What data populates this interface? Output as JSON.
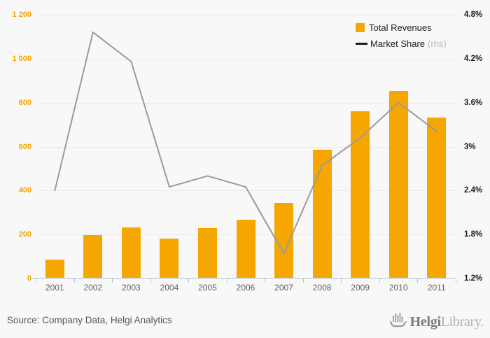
{
  "chart_data": {
    "type": "bar+line",
    "title": "",
    "categories": [
      "2001",
      "2002",
      "2003",
      "2004",
      "2005",
      "2006",
      "2007",
      "2008",
      "2009",
      "2010",
      "2011"
    ],
    "series": [
      {
        "name": "Total Revenues",
        "type": "bar",
        "axis": "left",
        "color": "#f5a600",
        "values": [
          87,
          198,
          233,
          182,
          229,
          268,
          345,
          585,
          762,
          854,
          731
        ]
      },
      {
        "name": "Market Share",
        "type": "line",
        "axis": "right",
        "color": "#9b9b9b",
        "values": [
          2.4,
          4.56,
          4.16,
          2.45,
          2.6,
          2.45,
          1.54,
          2.74,
          3.12,
          3.6,
          3.21
        ]
      }
    ],
    "left_axis": {
      "min": 0,
      "max": 1200,
      "tick_labels": [
        "1 200",
        "1 000",
        "800",
        "600",
        "400",
        "200",
        "0"
      ],
      "label_color": "#f5a600"
    },
    "right_axis": {
      "min": 1.2,
      "max": 4.8,
      "tick_labels": [
        "4.8%",
        "4.2%",
        "3.6%",
        "3%",
        "2.4%",
        "1.8%",
        "1.2%"
      ],
      "label_color": "#1d1d1d"
    },
    "grid": true,
    "legend_position": "top-right",
    "legend": [
      {
        "label": "Total Revenues",
        "marker": "square"
      },
      {
        "label": "Market Share",
        "suffix": "(rhs)",
        "marker": "line"
      }
    ]
  },
  "colors": {
    "background": "#f8f8f8",
    "bar": "#f5a600",
    "line": "#9b9b9b",
    "gridline": "#e9e9e9",
    "axis": "#b7c2d8",
    "x_labels": "#606060"
  },
  "footer": {
    "source": "Source: Company Data, Helgi Analytics",
    "logo_text_primary": "Helgi",
    "logo_text_secondary": "Library."
  }
}
